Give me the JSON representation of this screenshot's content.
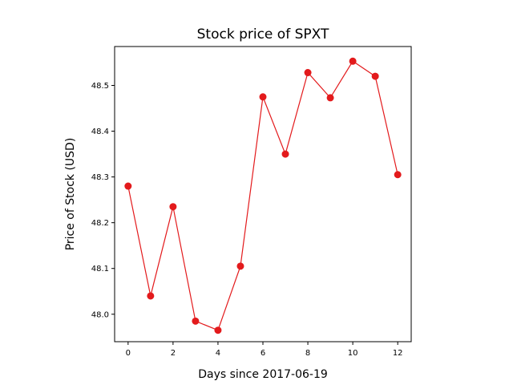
{
  "chart_data": {
    "type": "line",
    "title": "Stock price of SPXT",
    "xlabel": "Days since 2017-06-19",
    "ylabel": "Price of Stock (USD)",
    "x": [
      0,
      1,
      2,
      3,
      4,
      5,
      6,
      7,
      8,
      9,
      10,
      11,
      12
    ],
    "series": [
      {
        "values": [
          48.28,
          48.04,
          48.235,
          47.985,
          47.965,
          48.105,
          48.475,
          48.35,
          48.528,
          48.473,
          48.553,
          48.52,
          48.305
        ],
        "color": "#e31a1c",
        "marker": "circle"
      }
    ],
    "xlim": [
      -0.6,
      12.6
    ],
    "ylim": [
      47.94,
      48.585
    ],
    "xticks": [
      "0",
      "2",
      "4",
      "6",
      "8",
      "10",
      "12"
    ],
    "yticks": [
      "48.0",
      "48.1",
      "48.2",
      "48.3",
      "48.4",
      "48.5"
    ],
    "grid": false,
    "legend": "none"
  }
}
